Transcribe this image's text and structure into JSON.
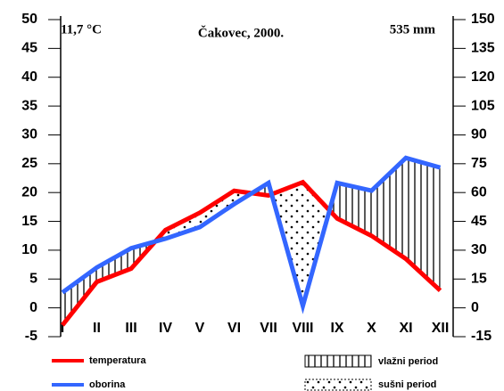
{
  "chart_data": {
    "type": "line",
    "title": "Čakovec, 2000.",
    "mean_temperature": "11,7 °C",
    "total_precipitation": "535 mm",
    "categories": [
      "I",
      "II",
      "III",
      "IV",
      "V",
      "VI",
      "VII",
      "VIII",
      "IX",
      "X",
      "XI",
      "XII"
    ],
    "series": [
      {
        "name": "temperatura",
        "color": "#ff0000",
        "values": [
          -3,
          4.5,
          6.8,
          13.5,
          16.5,
          20.3,
          19.5,
          21.8,
          15.5,
          12.5,
          8.5,
          3
        ]
      },
      {
        "name": "oborina",
        "color": "#3366ff",
        "axis": "y2",
        "values": [
          8,
          21,
          31,
          36,
          42,
          54,
          65,
          1,
          65,
          61,
          78,
          73
        ]
      }
    ],
    "period_legend": [
      "vlažni period",
      "sušni period"
    ],
    "ylim": [
      -5,
      50
    ],
    "yticks": [
      -5,
      0,
      5,
      10,
      15,
      20,
      25,
      30,
      35,
      40,
      45,
      50
    ],
    "y2lim": [
      -15,
      150
    ],
    "y2ticks": [
      -15,
      0,
      15,
      30,
      45,
      60,
      75,
      90,
      105,
      120,
      135,
      150
    ]
  }
}
